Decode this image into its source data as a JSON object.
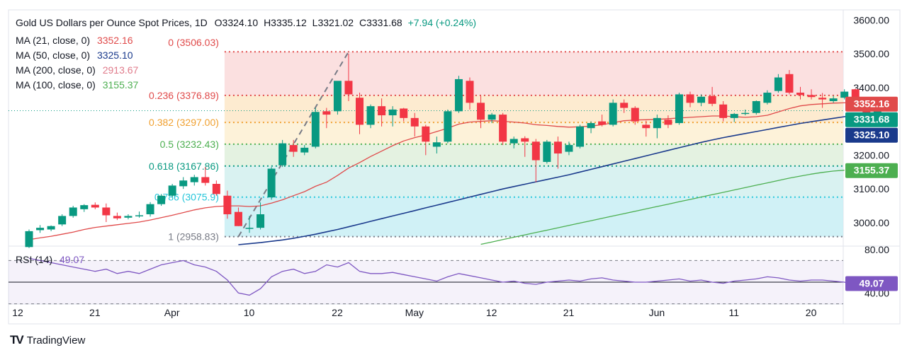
{
  "header": {
    "title": "Gold US Dollars per Ounce Spot Prices, 1D",
    "o": "O3324.10",
    "h": "H3335.12",
    "l": "L3321.02",
    "c": "C3331.68",
    "change": "+7.94 (+0.24%)"
  },
  "ma_legend": [
    {
      "label": "MA (21, close, 0)",
      "value": "3352.16",
      "color": "#e04a4a"
    },
    {
      "label": "MA (50, close, 0)",
      "value": "3325.10",
      "color": "#1a3a8c"
    },
    {
      "label": "MA (200, close, 0)",
      "value": "2913.67",
      "color": "#e07a8a"
    },
    {
      "label": "MA (100, close, 0)",
      "value": "3155.37",
      "color": "#4caf50"
    }
  ],
  "rsi": {
    "label": "RSI (14)",
    "value": "49.07",
    "color": "#7e57c2"
  },
  "brand": {
    "name": "TradingView",
    "icon": "tradingview-logo-icon"
  },
  "chart_data": {
    "type": "candlestick",
    "ylim": [
      2935,
      3630
    ],
    "y_ticks": [
      "3600.00",
      "3500.00",
      "3400.00",
      "3300.00",
      "3200.00",
      "3100.00",
      "3000.00"
    ],
    "x_ticks": [
      {
        "label": "12",
        "index": 0
      },
      {
        "label": "21",
        "index": 7
      },
      {
        "label": "Apr",
        "index": 14
      },
      {
        "label": "10",
        "index": 21
      },
      {
        "label": "22",
        "index": 29
      },
      {
        "label": "May",
        "index": 36
      },
      {
        "label": "12",
        "index": 43
      },
      {
        "label": "21",
        "index": 50
      },
      {
        "label": "Jun",
        "index": 58
      },
      {
        "label": "11",
        "index": 65
      },
      {
        "label": "20",
        "index": 72
      }
    ],
    "fibonacci": [
      {
        "label": "0 (3506.03)",
        "value": 3506.03,
        "color": "#e04a4a",
        "fill": "#fadada"
      },
      {
        "label": "0.236 (3376.89)",
        "value": 3376.89,
        "color": "#e04a4a",
        "fill": "#fde8c8"
      },
      {
        "label": "0.382 (3297.00)",
        "value": 3297.0,
        "color": "#f0a030",
        "fill": "#fdf0d2"
      },
      {
        "label": "0.5 (3232.43)",
        "value": 3232.43,
        "color": "#4caf50",
        "fill": "#dff0dc"
      },
      {
        "label": "0.618 (3167.86)",
        "value": 3167.86,
        "color": "#089981",
        "fill": "#d2f0ee"
      },
      {
        "label": "0.786 (3075.9)",
        "value": 3075.9,
        "color": "#26c6da",
        "fill": "#c8eef4"
      },
      {
        "label": "1 (2958.83)",
        "value": 2958.83,
        "color": "#787b86",
        "fill": "#e2e3e6"
      }
    ],
    "fib_start_index": 18,
    "candles": [
      {
        "o": 2928,
        "h": 2980,
        "l": 2925,
        "c": 2975
      },
      {
        "o": 2978,
        "h": 2993,
        "l": 2970,
        "c": 2985
      },
      {
        "o": 2980,
        "h": 2992,
        "l": 2975,
        "c": 2990
      },
      {
        "o": 2995,
        "h": 3025,
        "l": 2990,
        "c": 3020
      },
      {
        "o": 3020,
        "h": 3050,
        "l": 3015,
        "c": 3045
      },
      {
        "o": 3040,
        "h": 3055,
        "l": 3032,
        "c": 3052
      },
      {
        "o": 3053,
        "h": 3060,
        "l": 3040,
        "c": 3045
      },
      {
        "o": 3045,
        "h": 3057,
        "l": 3002,
        "c": 3022
      },
      {
        "o": 3020,
        "h": 3030,
        "l": 3008,
        "c": 3013
      },
      {
        "o": 3015,
        "h": 3025,
        "l": 3010,
        "c": 3020
      },
      {
        "o": 3020,
        "h": 3033,
        "l": 3015,
        "c": 3022
      },
      {
        "o": 3025,
        "h": 3061,
        "l": 3018,
        "c": 3055
      },
      {
        "o": 3055,
        "h": 3085,
        "l": 3050,
        "c": 3080
      },
      {
        "o": 3080,
        "h": 3115,
        "l": 3075,
        "c": 3110
      },
      {
        "o": 3108,
        "h": 3135,
        "l": 3100,
        "c": 3125
      },
      {
        "o": 3120,
        "h": 3142,
        "l": 3110,
        "c": 3135
      },
      {
        "o": 3135,
        "h": 3165,
        "l": 3110,
        "c": 3118
      },
      {
        "o": 3115,
        "h": 3125,
        "l": 3080,
        "c": 3085
      },
      {
        "o": 3080,
        "h": 3095,
        "l": 3012,
        "c": 3025
      },
      {
        "o": 3032,
        "h": 3045,
        "l": 2990,
        "c": 2990
      },
      {
        "o": 2985,
        "h": 3020,
        "l": 2970,
        "c": 2985
      },
      {
        "o": 2985,
        "h": 3060,
        "l": 2980,
        "c": 3025
      },
      {
        "o": 3075,
        "h": 3165,
        "l": 3068,
        "c": 3160
      },
      {
        "o": 3170,
        "h": 3245,
        "l": 3165,
        "c": 3235
      },
      {
        "o": 3230,
        "h": 3245,
        "l": 3195,
        "c": 3210
      },
      {
        "o": 3208,
        "h": 3230,
        "l": 3200,
        "c": 3222
      },
      {
        "o": 3225,
        "h": 3340,
        "l": 3220,
        "c": 3328
      },
      {
        "o": 3330,
        "h": 3340,
        "l": 3280,
        "c": 3320
      },
      {
        "o": 3330,
        "h": 3418,
        "l": 3320,
        "c": 3420
      },
      {
        "o": 3420,
        "h": 3500,
        "l": 3360,
        "c": 3380
      },
      {
        "o": 3370,
        "h": 3385,
        "l": 3262,
        "c": 3290
      },
      {
        "o": 3290,
        "h": 3350,
        "l": 3280,
        "c": 3345
      },
      {
        "o": 3345,
        "h": 3368,
        "l": 3285,
        "c": 3318
      },
      {
        "o": 3318,
        "h": 3345,
        "l": 3285,
        "c": 3335
      },
      {
        "o": 3338,
        "h": 3340,
        "l": 3300,
        "c": 3310
      },
      {
        "o": 3310,
        "h": 3325,
        "l": 3255,
        "c": 3285
      },
      {
        "o": 3285,
        "h": 3290,
        "l": 3200,
        "c": 3240
      },
      {
        "o": 3225,
        "h": 3255,
        "l": 3205,
        "c": 3238
      },
      {
        "o": 3240,
        "h": 3335,
        "l": 3235,
        "c": 3330
      },
      {
        "o": 3330,
        "h": 3435,
        "l": 3325,
        "c": 3425
      },
      {
        "o": 3420,
        "h": 3430,
        "l": 3335,
        "c": 3355
      },
      {
        "o": 3355,
        "h": 3375,
        "l": 3280,
        "c": 3305
      },
      {
        "o": 3305,
        "h": 3325,
        "l": 3295,
        "c": 3320
      },
      {
        "o": 3320,
        "h": 3325,
        "l": 3230,
        "c": 3240
      },
      {
        "o": 3235,
        "h": 3255,
        "l": 3220,
        "c": 3248
      },
      {
        "o": 3250,
        "h": 3256,
        "l": 3195,
        "c": 3240
      },
      {
        "o": 3240,
        "h": 3248,
        "l": 3120,
        "c": 3185
      },
      {
        "o": 3180,
        "h": 3245,
        "l": 3175,
        "c": 3240
      },
      {
        "o": 3240,
        "h": 3255,
        "l": 3160,
        "c": 3205
      },
      {
        "o": 3210,
        "h": 3240,
        "l": 3200,
        "c": 3230
      },
      {
        "o": 3225,
        "h": 3290,
        "l": 3220,
        "c": 3285
      },
      {
        "o": 3280,
        "h": 3300,
        "l": 3265,
        "c": 3295
      },
      {
        "o": 3300,
        "h": 3320,
        "l": 3285,
        "c": 3290
      },
      {
        "o": 3290,
        "h": 3365,
        "l": 3285,
        "c": 3355
      },
      {
        "o": 3355,
        "h": 3365,
        "l": 3325,
        "c": 3340
      },
      {
        "o": 3340,
        "h": 3345,
        "l": 3290,
        "c": 3300
      },
      {
        "o": 3290,
        "h": 3302,
        "l": 3255,
        "c": 3280
      },
      {
        "o": 3280,
        "h": 3320,
        "l": 3250,
        "c": 3310
      },
      {
        "o": 3305,
        "h": 3318,
        "l": 3280,
        "c": 3290
      },
      {
        "o": 3295,
        "h": 3385,
        "l": 3290,
        "c": 3380
      },
      {
        "o": 3380,
        "h": 3388,
        "l": 3342,
        "c": 3355
      },
      {
        "o": 3355,
        "h": 3380,
        "l": 3345,
        "c": 3373
      },
      {
        "o": 3375,
        "h": 3402,
        "l": 3345,
        "c": 3352
      },
      {
        "o": 3350,
        "h": 3360,
        "l": 3300,
        "c": 3310
      },
      {
        "o": 3310,
        "h": 3325,
        "l": 3298,
        "c": 3322
      },
      {
        "o": 3322,
        "h": 3335,
        "l": 3318,
        "c": 3325
      },
      {
        "o": 3325,
        "h": 3362,
        "l": 3320,
        "c": 3360
      },
      {
        "o": 3355,
        "h": 3392,
        "l": 3350,
        "c": 3385
      },
      {
        "o": 3390,
        "h": 3440,
        "l": 3385,
        "c": 3430
      },
      {
        "o": 3440,
        "h": 3452,
        "l": 3380,
        "c": 3385
      },
      {
        "o": 3385,
        "h": 3402,
        "l": 3365,
        "c": 3378
      },
      {
        "o": 3378,
        "h": 3395,
        "l": 3365,
        "c": 3372
      },
      {
        "o": 3370,
        "h": 3384,
        "l": 3340,
        "c": 3365
      },
      {
        "o": 3360,
        "h": 3376,
        "l": 3355,
        "c": 3368
      },
      {
        "o": 3370,
        "h": 3395,
        "l": 3365,
        "c": 3388
      },
      {
        "o": 3395,
        "h": 3397,
        "l": 3360,
        "c": 3368
      },
      {
        "o": 3368,
        "h": 3370,
        "l": 3285,
        "c": 3322
      },
      {
        "o": 3324.1,
        "h": 3335.12,
        "l": 3321.02,
        "c": 3331.68
      }
    ],
    "price_labels": [
      {
        "value": 3352.16,
        "text": "3352.16",
        "color": "#e04a4a"
      },
      {
        "value": 3331.68,
        "text": "3331.68",
        "color": "#089981"
      },
      {
        "value": 3325.1,
        "text": "3325.10",
        "color": "#1a3a8c"
      },
      {
        "value": 3155.37,
        "text": "3155.37",
        "color": "#4caf50"
      }
    ],
    "ma21": [
      2950,
      2955,
      2960,
      2966,
      2972,
      2980,
      2986,
      2990,
      2994,
      2998,
      3002,
      3008,
      3015,
      3022,
      3030,
      3038,
      3044,
      3048,
      3050,
      3050,
      3048,
      3050,
      3058,
      3068,
      3080,
      3092,
      3108,
      3120,
      3140,
      3162,
      3178,
      3196,
      3212,
      3228,
      3242,
      3252,
      3260,
      3270,
      3280,
      3292,
      3298,
      3300,
      3302,
      3300,
      3298,
      3295,
      3290,
      3288,
      3285,
      3283,
      3284,
      3286,
      3290,
      3296,
      3302,
      3304,
      3305,
      3306,
      3308,
      3310,
      3312,
      3314,
      3316,
      3316,
      3314,
      3312,
      3314,
      3318,
      3328,
      3338,
      3346,
      3350,
      3352,
      3354,
      3355,
      3355,
      3352,
      3352.16
    ],
    "ma50_start": 19,
    "ma50": [
      2935,
      2938,
      2941,
      2945,
      2949,
      2954,
      2960,
      2966,
      2973,
      2980,
      2988,
      2996,
      3004,
      3012,
      3020,
      3028,
      3036,
      3044,
      3052,
      3060,
      3068,
      3076,
      3084,
      3092,
      3100,
      3107,
      3114,
      3121,
      3128,
      3135,
      3142,
      3150,
      3158,
      3166,
      3174,
      3182,
      3190,
      3198,
      3206,
      3214,
      3222,
      3230,
      3238,
      3245,
      3252,
      3258,
      3264,
      3270,
      3276,
      3282,
      3288,
      3294,
      3299,
      3304,
      3309,
      3314,
      3318,
      3322,
      3324,
      3325.1
    ],
    "ma100_start": 41,
    "ma100": [
      2936,
      2943,
      2950,
      2957,
      2964,
      2971,
      2978,
      2985,
      2992,
      2999,
      3006,
      3013,
      3020,
      3027,
      3034,
      3041,
      3048,
      3055,
      3062,
      3069,
      3076,
      3083,
      3090,
      3097,
      3104,
      3111,
      3118,
      3125,
      3132,
      3138,
      3144,
      3149,
      3153,
      3155.37
    ],
    "rsi_series": [
      72,
      70,
      68,
      66,
      64,
      62,
      60,
      62,
      58,
      60,
      58,
      62,
      66,
      68,
      70,
      66,
      64,
      60,
      52,
      40,
      38,
      44,
      55,
      60,
      62,
      58,
      60,
      66,
      64,
      68,
      60,
      58,
      58,
      59,
      57,
      55,
      53,
      51,
      55,
      58,
      56,
      54,
      52,
      50,
      51,
      49,
      48,
      50,
      51,
      52,
      51,
      53,
      54,
      52,
      51,
      50,
      50,
      51,
      52,
      53,
      51,
      52,
      50,
      49,
      51,
      52,
      53,
      55,
      54,
      52,
      51,
      52,
      52,
      51,
      50,
      47,
      48,
      49.07
    ],
    "rsi_ylim": [
      35,
      82
    ],
    "rsi_ticks": [
      "80.00",
      "40.00"
    ],
    "rsi_levels": [
      70,
      50,
      30
    ]
  }
}
